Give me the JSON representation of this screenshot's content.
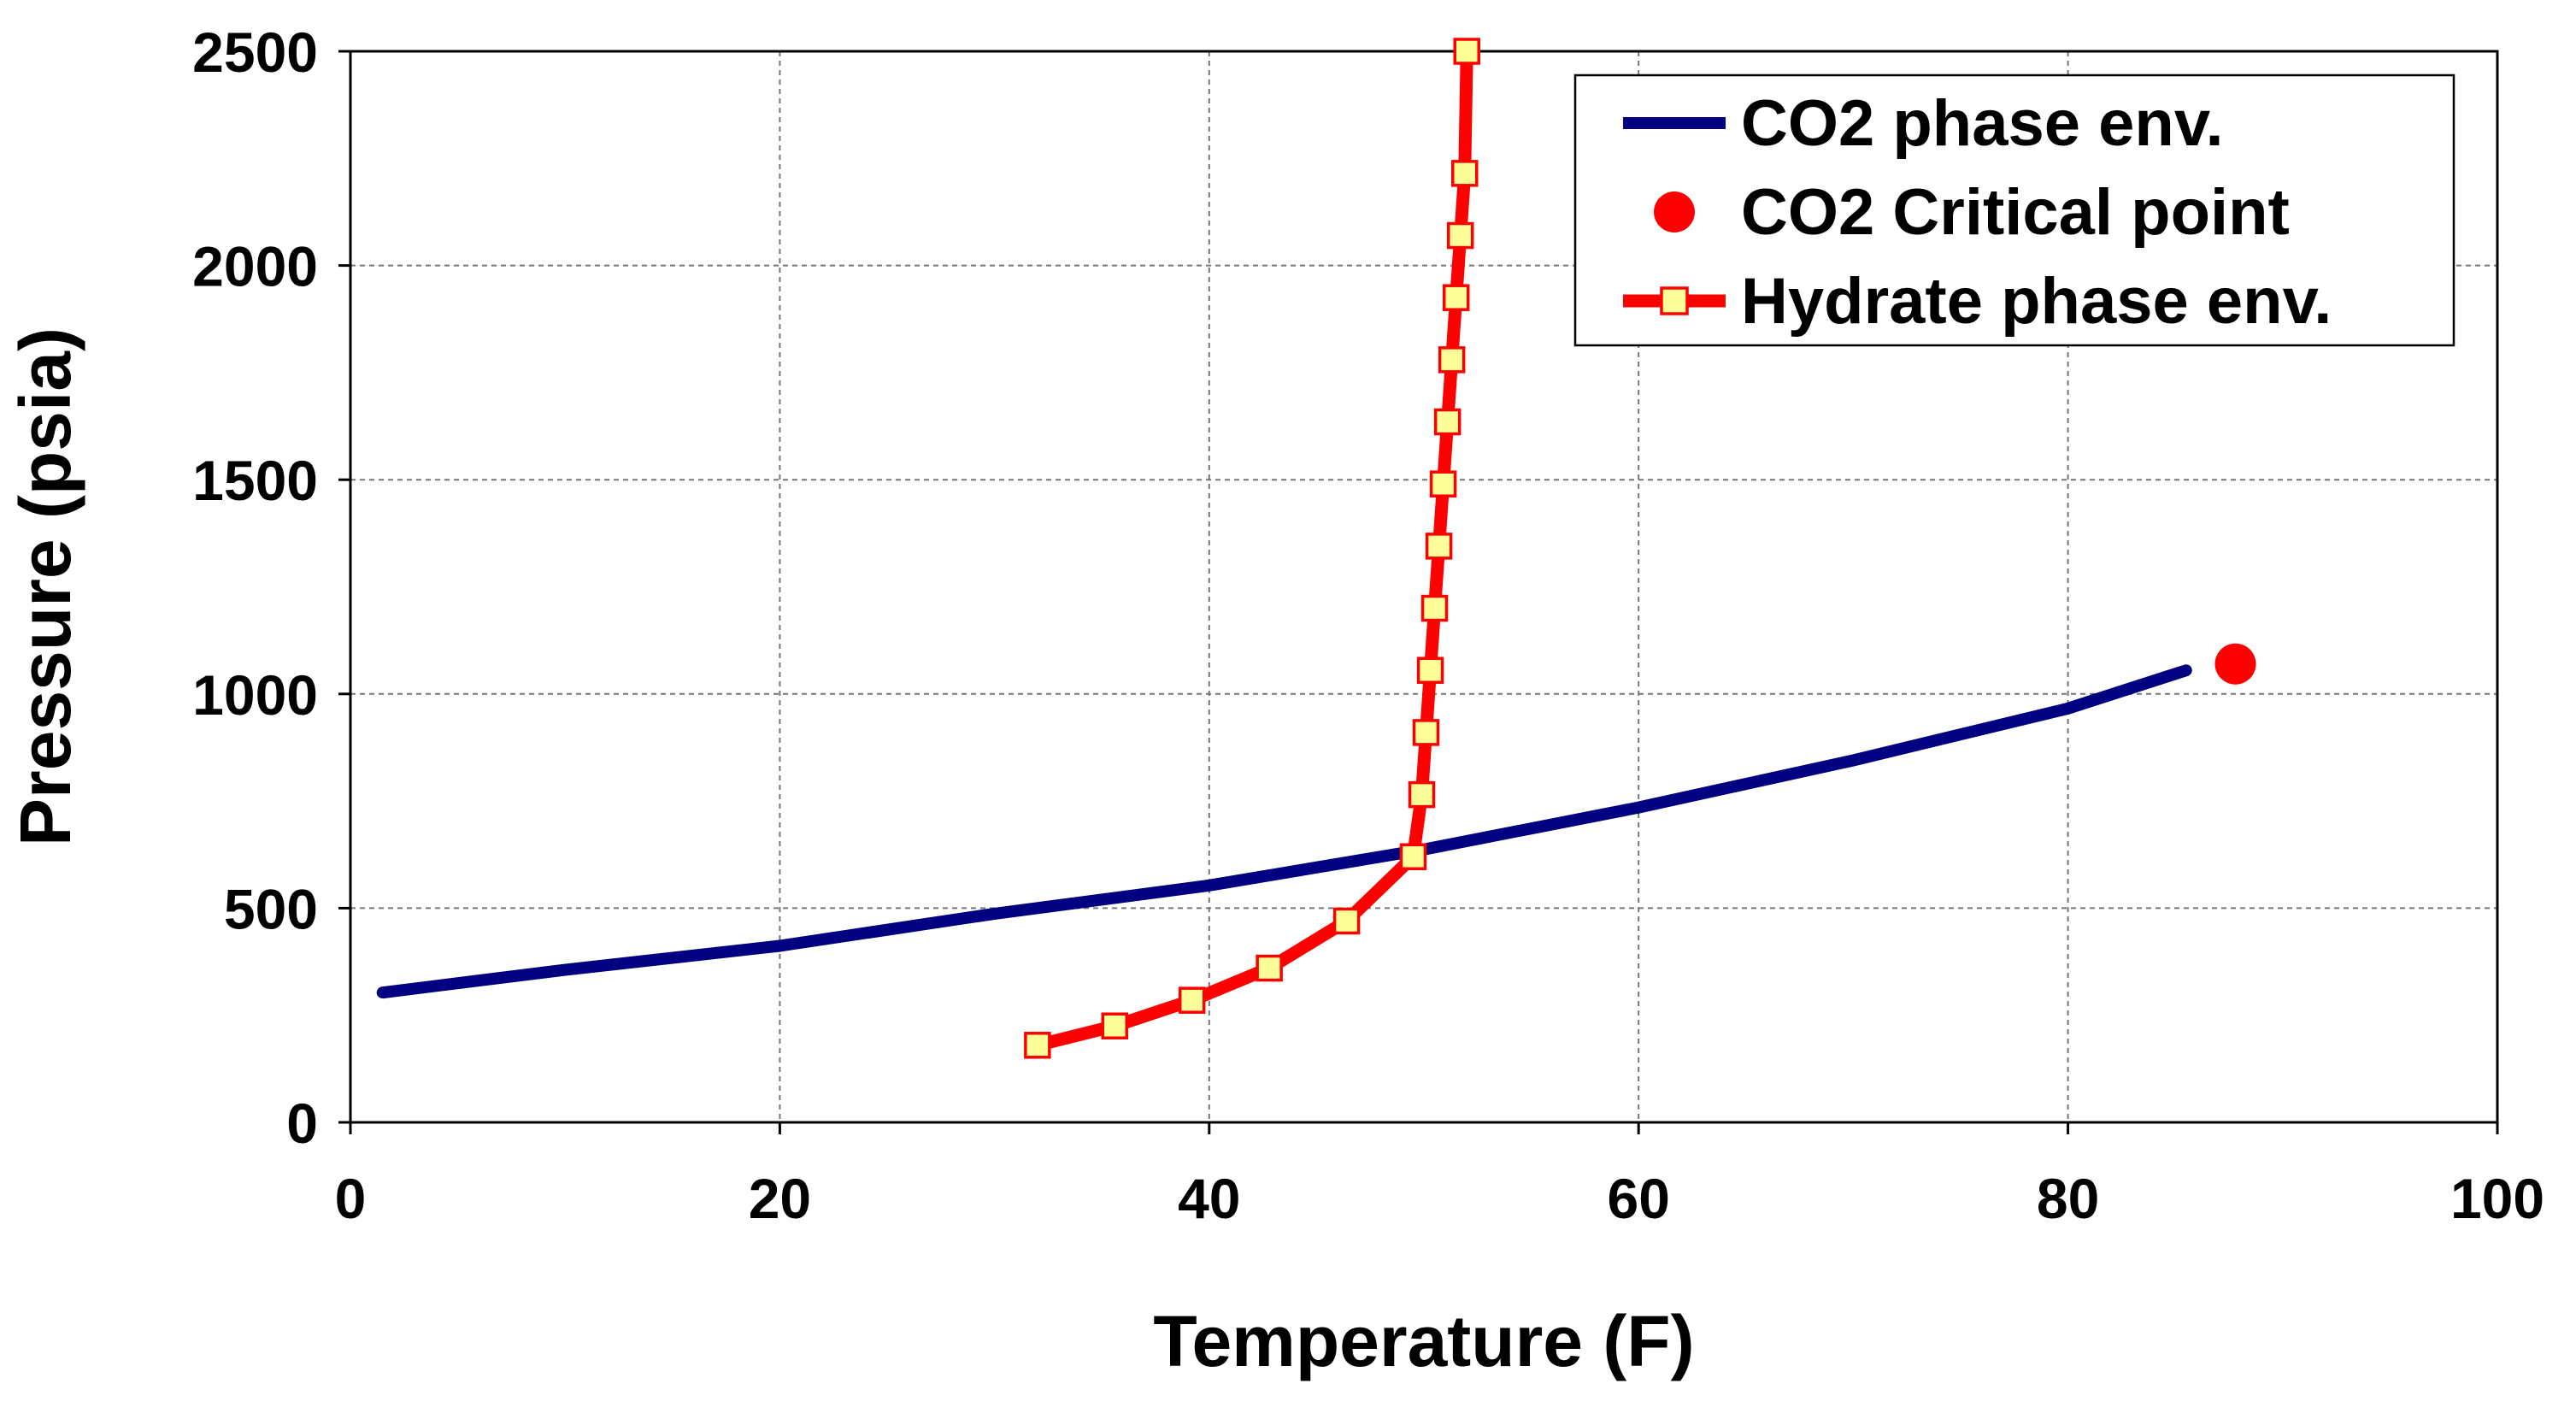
{
  "chart_data": {
    "type": "line",
    "title": "",
    "xlabel": "Temperature (F)",
    "ylabel": "Pressure (psia)",
    "xlim": [
      0,
      100
    ],
    "ylim": [
      0,
      2500
    ],
    "x_ticks": [
      "0",
      "20",
      "40",
      "60",
      "80",
      "100"
    ],
    "y_ticks": [
      "0",
      "500",
      "1000",
      "1500",
      "2000",
      "2500"
    ],
    "grid": true,
    "legend_position": "top-right",
    "series": [
      {
        "name": "CO2 phase env.",
        "color": "#000080",
        "marker": "none",
        "x": [
          1.5,
          10,
          20,
          30,
          40,
          50,
          60,
          70,
          80,
          85.5
        ],
        "y": [
          303,
          356,
          412,
          487,
          553,
          637,
          735,
          845,
          966,
          1055
        ]
      },
      {
        "name": "CO2 Critical point",
        "color": "#ff0000",
        "marker": "circle",
        "x": [
          87.8
        ],
        "y": [
          1070
        ]
      },
      {
        "name": "Hydrate phase env.",
        "color": "#ff0000",
        "marker": "square",
        "marker_fill": "#ffff99",
        "x": [
          32.0,
          35.6,
          39.2,
          42.8,
          46.4,
          49.5,
          49.9,
          50.1,
          50.3,
          50.5,
          50.7,
          50.9,
          51.1,
          51.3,
          51.5,
          51.7,
          51.9,
          52.0
        ],
        "y": [
          180,
          225,
          285,
          360,
          470,
          620,
          765,
          910,
          1055,
          1200,
          1345,
          1490,
          1635,
          1780,
          1925,
          2070,
          2215,
          2500
        ]
      }
    ]
  }
}
